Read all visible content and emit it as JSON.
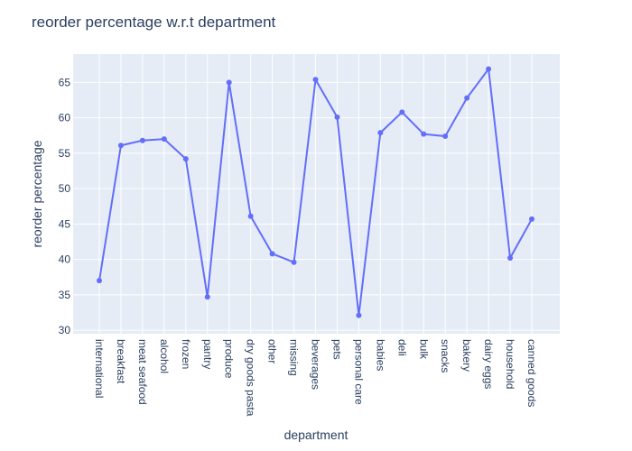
{
  "chart_data": {
    "type": "line",
    "title": "reorder percentage w.r.t department",
    "xlabel": "department",
    "ylabel": "reorder percentage",
    "categories": [
      "international",
      "breakfast",
      "meat seafood",
      "alcohol",
      "frozen",
      "pantry",
      "produce",
      "dry goods pasta",
      "other",
      "missing",
      "beverages",
      "pets",
      "personal care",
      "babies",
      "deli",
      "bulk",
      "snacks",
      "bakery",
      "dairy eggs",
      "household",
      "canned goods"
    ],
    "series": [
      {
        "values": [
          37.0,
          56.1,
          56.8,
          57.0,
          54.2,
          34.7,
          65.0,
          46.1,
          40.8,
          39.6,
          65.4,
          60.1,
          32.1,
          57.9,
          60.8,
          57.7,
          57.4,
          62.8,
          66.9,
          40.2,
          45.7
        ]
      }
    ],
    "y_ticks": [
      30,
      35,
      40,
      45,
      50,
      55,
      60,
      65
    ],
    "ylim": [
      29.5,
      69.0
    ],
    "grid": true,
    "legend": "none",
    "line_color": "#636efa",
    "plot_bg": "#e5ecf6"
  }
}
